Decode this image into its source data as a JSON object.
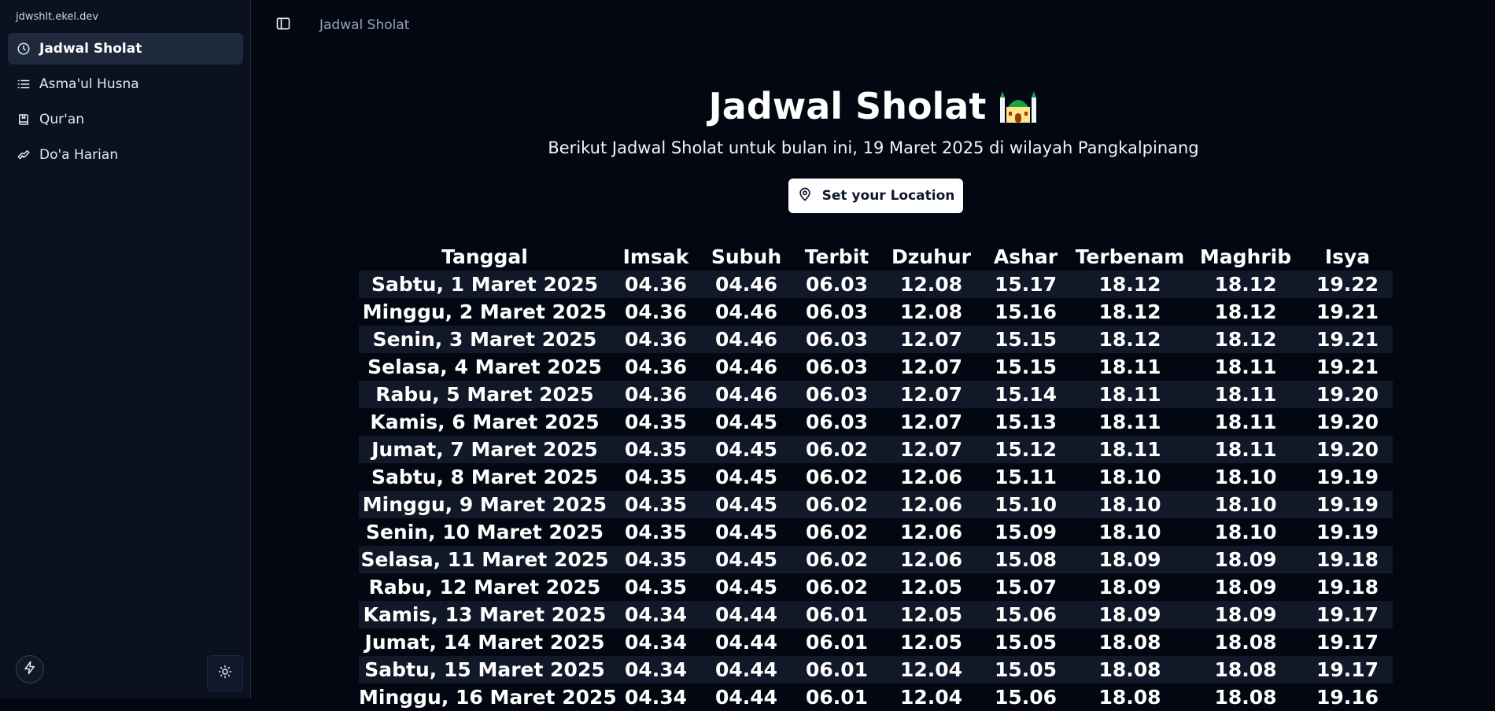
{
  "site": {
    "name": "jdwshlt.ekel.dev"
  },
  "sidebar": {
    "items": [
      {
        "label": "Jadwal Sholat",
        "icon": "clock-icon",
        "active": true
      },
      {
        "label": "Asma'ul Husna",
        "icon": "list-icon",
        "active": false
      },
      {
        "label": "Qur'an",
        "icon": "book-icon",
        "active": false
      },
      {
        "label": "Do'a Harian",
        "icon": "praying-hands-icon",
        "active": false
      }
    ],
    "footer": {
      "left_icon": "bolt-icon",
      "right_icon": "sun-icon"
    }
  },
  "topbar": {
    "toggle_icon": "sidebar-toggle-icon",
    "breadcrumb": "Jadwal Sholat"
  },
  "main": {
    "title": "Jadwal Sholat",
    "title_emoji_icon": "mosque-icon",
    "subtitle": "Berikut Jadwal Sholat untuk bulan ini, 19 Maret 2025 di wilayah Pangkalpinang",
    "location_button": {
      "label": "Set your Location",
      "icon": "map-pin-icon"
    }
  },
  "table": {
    "headers": [
      "Tanggal",
      "Imsak",
      "Subuh",
      "Terbit",
      "Dzuhur",
      "Ashar",
      "Terbenam",
      "Maghrib",
      "Isya"
    ],
    "rows": [
      [
        "Sabtu, 1 Maret 2025",
        "04.36",
        "04.46",
        "06.03",
        "12.08",
        "15.17",
        "18.12",
        "18.12",
        "19.22"
      ],
      [
        "Minggu, 2 Maret 2025",
        "04.36",
        "04.46",
        "06.03",
        "12.08",
        "15.16",
        "18.12",
        "18.12",
        "19.21"
      ],
      [
        "Senin, 3 Maret 2025",
        "04.36",
        "04.46",
        "06.03",
        "12.07",
        "15.15",
        "18.12",
        "18.12",
        "19.21"
      ],
      [
        "Selasa, 4 Maret 2025",
        "04.36",
        "04.46",
        "06.03",
        "12.07",
        "15.15",
        "18.11",
        "18.11",
        "19.21"
      ],
      [
        "Rabu, 5 Maret 2025",
        "04.36",
        "04.46",
        "06.03",
        "12.07",
        "15.14",
        "18.11",
        "18.11",
        "19.20"
      ],
      [
        "Kamis, 6 Maret 2025",
        "04.35",
        "04.45",
        "06.03",
        "12.07",
        "15.13",
        "18.11",
        "18.11",
        "19.20"
      ],
      [
        "Jumat, 7 Maret 2025",
        "04.35",
        "04.45",
        "06.02",
        "12.07",
        "15.12",
        "18.11",
        "18.11",
        "19.20"
      ],
      [
        "Sabtu, 8 Maret 2025",
        "04.35",
        "04.45",
        "06.02",
        "12.06",
        "15.11",
        "18.10",
        "18.10",
        "19.19"
      ],
      [
        "Minggu, 9 Maret 2025",
        "04.35",
        "04.45",
        "06.02",
        "12.06",
        "15.10",
        "18.10",
        "18.10",
        "19.19"
      ],
      [
        "Senin, 10 Maret 2025",
        "04.35",
        "04.45",
        "06.02",
        "12.06",
        "15.09",
        "18.10",
        "18.10",
        "19.19"
      ],
      [
        "Selasa, 11 Maret 2025",
        "04.35",
        "04.45",
        "06.02",
        "12.06",
        "15.08",
        "18.09",
        "18.09",
        "19.18"
      ],
      [
        "Rabu, 12 Maret 2025",
        "04.35",
        "04.45",
        "06.02",
        "12.05",
        "15.07",
        "18.09",
        "18.09",
        "19.18"
      ],
      [
        "Kamis, 13 Maret 2025",
        "04.34",
        "04.44",
        "06.01",
        "12.05",
        "15.06",
        "18.09",
        "18.09",
        "19.17"
      ],
      [
        "Jumat, 14 Maret 2025",
        "04.34",
        "04.44",
        "06.01",
        "12.05",
        "15.05",
        "18.08",
        "18.08",
        "19.17"
      ],
      [
        "Sabtu, 15 Maret 2025",
        "04.34",
        "04.44",
        "06.01",
        "12.04",
        "15.05",
        "18.08",
        "18.08",
        "19.17"
      ],
      [
        "Minggu, 16 Maret 2025",
        "04.34",
        "04.44",
        "06.01",
        "12.04",
        "15.06",
        "18.08",
        "18.08",
        "19.16"
      ]
    ]
  },
  "colors": {
    "background": "#030712",
    "sidebar": "#0b1120",
    "active_item": "#1e293b",
    "row_stripe": "#111827",
    "button_bg": "#ffffff",
    "text": "#ffffff"
  }
}
